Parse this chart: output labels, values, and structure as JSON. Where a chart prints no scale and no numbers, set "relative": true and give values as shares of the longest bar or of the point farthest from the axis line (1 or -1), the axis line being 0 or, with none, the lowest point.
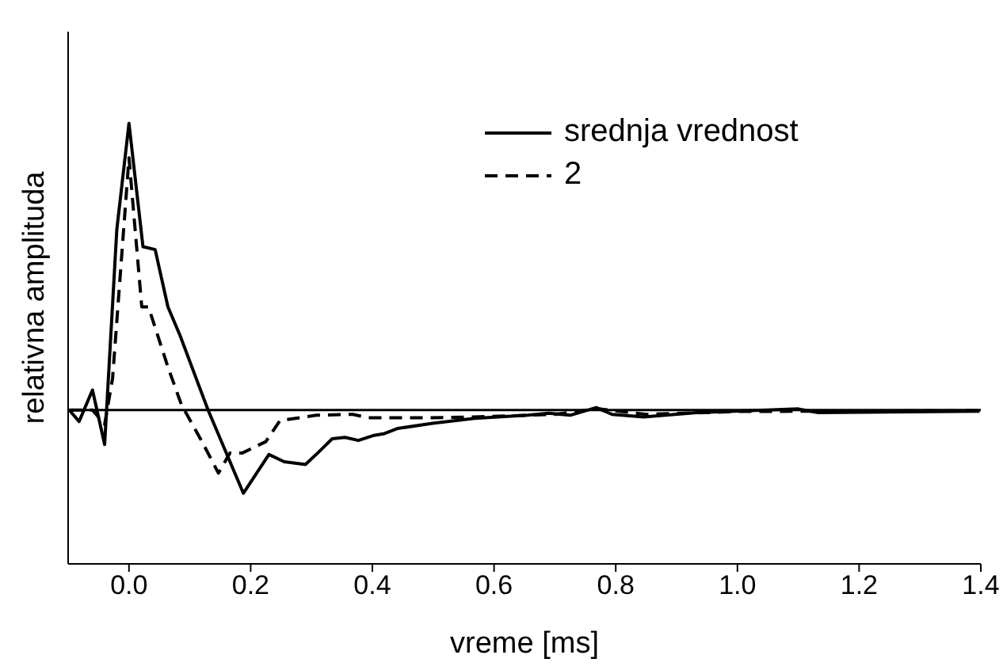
{
  "chart_data": {
    "type": "line",
    "relative": true,
    "xlabel": "vreme [ms]",
    "ylabel": "relativna amplituda",
    "xlim": [
      -0.1,
      1.4
    ],
    "xticks": [
      {
        "value": 0,
        "label": "0.0"
      },
      {
        "value": 0.2,
        "label": "0.2"
      },
      {
        "value": 0.4,
        "label": "0.4"
      },
      {
        "value": 0.6,
        "label": "0.6"
      },
      {
        "value": 0.8,
        "label": "0.8"
      },
      {
        "value": 1,
        "label": "1.0"
      },
      {
        "value": 1.2,
        "label": "1.2"
      },
      {
        "value": 1.4,
        "label": "1.4"
      }
    ],
    "tick_labels": "x",
    "legend": "top right",
    "marker": "none",
    "series": [
      {
        "name": "srednja vrednost",
        "color": "#000000",
        "line_style": "solid",
        "x": [
          -0.098,
          -0.082,
          -0.06,
          -0.04,
          -0.02,
          0.0,
          0.023,
          0.043,
          0.064,
          0.084,
          0.13,
          0.188,
          0.23,
          0.255,
          0.29,
          0.31,
          0.334,
          0.355,
          0.377,
          0.403,
          0.42,
          0.442,
          0.499,
          0.568,
          0.655,
          0.69,
          0.725,
          0.768,
          0.794,
          0.846,
          0.933,
          1.1,
          1.133,
          1.398
        ],
        "values": [
          0.0,
          -0.04,
          0.07,
          -0.12,
          0.63,
          1.0,
          0.57,
          0.56,
          0.36,
          0.26,
          0.0,
          -0.29,
          -0.155,
          -0.18,
          -0.19,
          -0.15,
          -0.1,
          -0.095,
          -0.106,
          -0.088,
          -0.082,
          -0.064,
          -0.046,
          -0.029,
          -0.018,
          -0.011,
          -0.018,
          0.009,
          -0.015,
          -0.024,
          -0.009,
          0.004,
          -0.009,
          -0.004
        ]
      },
      {
        "name": "2",
        "color": "#000000",
        "line_style": "dashed",
        "x": [
          -0.098,
          -0.06,
          -0.04,
          -0.027,
          0.0,
          0.021,
          0.032,
          0.064,
          0.086,
          0.12,
          0.147,
          0.166,
          0.186,
          0.225,
          0.248,
          0.308,
          0.368,
          0.394,
          0.48,
          0.568,
          0.7,
          0.77,
          0.85,
          1.0,
          1.398
        ],
        "values": [
          0.0,
          0.0,
          -0.05,
          0.11,
          0.88,
          0.36,
          0.36,
          0.15,
          0.02,
          -0.11,
          -0.22,
          -0.15,
          -0.15,
          -0.11,
          -0.037,
          -0.018,
          -0.015,
          -0.027,
          -0.027,
          -0.024,
          -0.015,
          0.005,
          -0.015,
          -0.005,
          -0.002
        ]
      }
    ]
  }
}
